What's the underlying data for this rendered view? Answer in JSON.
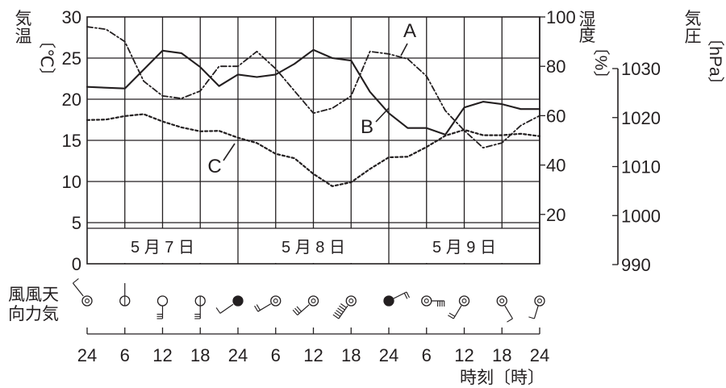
{
  "chart_data": {
    "type": "line",
    "axes": {
      "left": {
        "title": [
          "気",
          "温"
        ],
        "unit": "〔℃〕",
        "range": [
          0,
          30
        ],
        "ticks": [
          0,
          5,
          10,
          15,
          20,
          25,
          30
        ]
      },
      "humidity": {
        "title": [
          "湿",
          "度"
        ],
        "unit": "〔%〕",
        "range": [
          20,
          100
        ],
        "ticks": [
          20,
          40,
          60,
          80,
          100
        ]
      },
      "pressure": {
        "title": [
          "気",
          "圧"
        ],
        "unit": "〔hPa〕",
        "range": [
          990,
          1030
        ],
        "ticks": [
          990,
          1000,
          1010,
          1020,
          1030
        ]
      },
      "x": {
        "ticks": [
          "24",
          "6",
          "12",
          "18",
          "24",
          "6",
          "12",
          "18",
          "24",
          "6",
          "12",
          "18",
          "24"
        ],
        "label": "時刻〔時〕"
      }
    },
    "days": [
      "5 月 7 日",
      "5 月 8 日",
      "5 月 9 日"
    ],
    "series": [
      {
        "name": "A",
        "style": "dashdot",
        "axis": "humidity",
        "x": [
          0,
          1,
          2,
          3,
          4,
          5,
          6,
          7,
          8,
          9,
          10,
          11,
          12,
          13,
          14,
          15,
          16,
          17,
          18,
          19,
          20,
          21,
          22,
          23,
          24
        ],
        "values": [
          96,
          95,
          90,
          74,
          68,
          67,
          70,
          80,
          80,
          86,
          79,
          70,
          61,
          63,
          68,
          86,
          85,
          83,
          76,
          62,
          54,
          47,
          49,
          56,
          60
        ]
      },
      {
        "name": "B",
        "style": "solid",
        "axis": "left",
        "x": [
          0,
          2,
          4,
          5,
          6,
          7,
          8,
          9,
          10,
          11,
          12,
          13,
          14,
          15,
          16,
          17,
          18,
          19,
          20,
          21,
          22,
          23,
          24
        ],
        "values": [
          21.5,
          21.3,
          25.9,
          25.6,
          23.9,
          21.6,
          23.0,
          22.7,
          23.0,
          24.3,
          26.0,
          25.0,
          24.7,
          20.9,
          18.3,
          16.5,
          16.5,
          15.7,
          19.0,
          19.7,
          19.4,
          18.8,
          18.8
        ]
      },
      {
        "name": "C",
        "style": "dotted",
        "axis": "pressure",
        "x": [
          0,
          1,
          2,
          3,
          4,
          5,
          6,
          7,
          8,
          9,
          10,
          11,
          12,
          13,
          14,
          15,
          16,
          17,
          18,
          19,
          20,
          21,
          22,
          23,
          24
        ],
        "values": [
          1019.5,
          1019.6,
          1020.3,
          1020.7,
          1019.2,
          1018.0,
          1017.2,
          1017.3,
          1015.9,
          1014.8,
          1012.6,
          1011.7,
          1008.5,
          1006.0,
          1006.8,
          1009.5,
          1011.9,
          1012.0,
          1014.0,
          1016.3,
          1017.5,
          1016.4,
          1016.4,
          1016.7,
          1016.2
        ]
      }
    ],
    "grid": true
  },
  "wind_panel": {
    "row_label": [
      "風風天",
      "向力気"
    ],
    "weather": [
      "clear",
      "sunny",
      "cloud-free",
      "sunny",
      "rain",
      "cloudy",
      "cloudy",
      "cloudy",
      "rain",
      "cloudy",
      "cloudy",
      "cloudy",
      "cloudy"
    ],
    "barbs": [
      1,
      0,
      3,
      3,
      1,
      2,
      3,
      6,
      2,
      4,
      2,
      1,
      1
    ]
  }
}
